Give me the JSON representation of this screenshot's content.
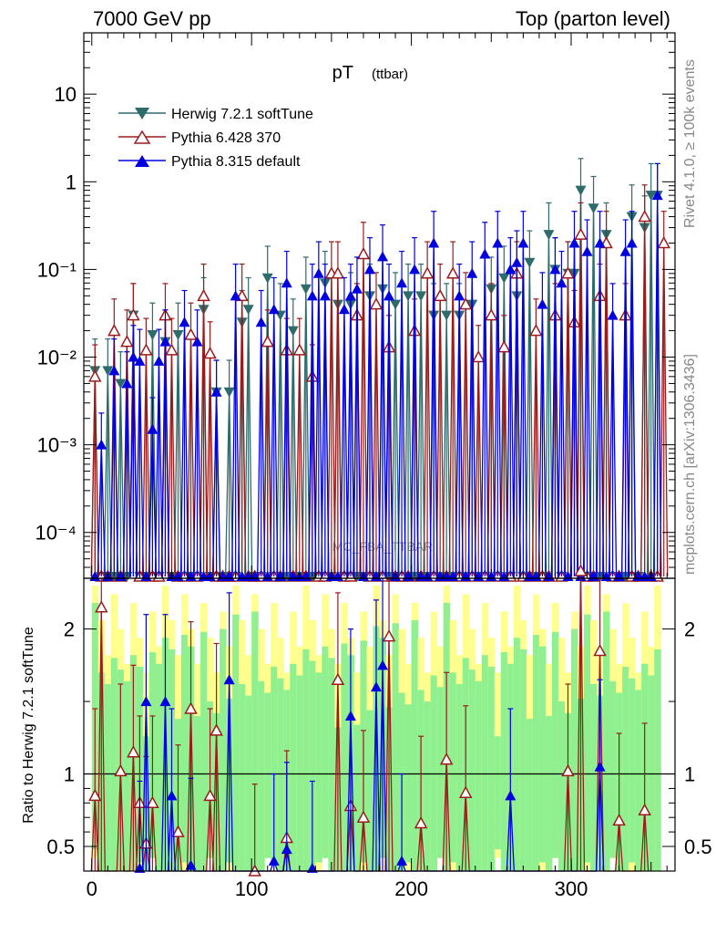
{
  "header": {
    "left": "7000 GeV pp",
    "right": "Top (parton level)"
  },
  "side_text": {
    "rivet": "Rivet 4.1.0, ≥ 100k events",
    "mcplots": "mcplots.cern.ch [arXiv:1306.3436]"
  },
  "watermark": "MC_FBA_TTBAR",
  "colors": {
    "herwig": "#2e6b6b",
    "pythia6": "#9b1b1b",
    "pythia8": "#0000e0",
    "band_green": "#90f090",
    "band_yellow": "#ffff90"
  },
  "chart_data": [
    {
      "type": "scatter",
      "title": "pT",
      "title_sub": "(ttbar)",
      "xlabel": "",
      "ylabel": "",
      "yscale": "log",
      "xlim": [
        -5,
        365
      ],
      "ylim": [
        3e-05,
        50
      ],
      "y_tick_labels": [
        "10",
        "1",
        "10⁻¹",
        "10⁻²",
        "10⁻³",
        "10⁻⁴"
      ],
      "y_tick_values": [
        10,
        1,
        0.1,
        0.01,
        0.001,
        0.0001
      ],
      "legend_position": "top-left",
      "series": [
        {
          "name": "Herwig 7.2.1 softTune",
          "marker": "triangle-down-filled",
          "x": [
            2,
            10,
            18,
            26,
            38,
            46,
            54,
            70,
            78,
            86,
            94,
            98,
            110,
            118,
            126,
            134,
            146,
            154,
            162,
            174,
            182,
            190,
            198,
            206,
            214,
            222,
            230,
            238,
            250,
            258,
            266,
            274,
            286,
            290,
            298,
            302,
            306,
            314,
            322,
            338,
            346,
            350,
            354
          ],
          "values": [
            0.007,
            0.007,
            0.005,
            0.03,
            0.018,
            0.015,
            0.018,
            0.035,
            0.004,
            0.004,
            0.025,
            0.035,
            0.08,
            0.03,
            0.02,
            0.06,
            0.07,
            0.04,
            0.04,
            0.05,
            0.06,
            0.04,
            0.05,
            0.05,
            0.03,
            0.03,
            0.03,
            0.04,
            0.06,
            0.08,
            0.05,
            0.12,
            0.25,
            0.1,
            0.09,
            0.09,
            0.8,
            0.5,
            0.25,
            0.4,
            0.3,
            0.7,
            0.7
          ]
        },
        {
          "name": "Pythia 6.428 370",
          "marker": "triangle-up-open",
          "x": [
            2,
            14,
            22,
            26,
            34,
            46,
            50,
            62,
            70,
            74,
            94,
            110,
            122,
            130,
            138,
            150,
            154,
            166,
            170,
            178,
            186,
            202,
            210,
            218,
            226,
            234,
            242,
            250,
            258,
            266,
            278,
            290,
            298,
            302,
            306,
            318,
            322,
            334,
            346,
            358
          ],
          "values": [
            0.006,
            0.02,
            0.015,
            0.03,
            0.012,
            0.03,
            0.012,
            0.018,
            0.05,
            0.011,
            0.05,
            0.015,
            0.012,
            0.012,
            0.006,
            0.09,
            0.09,
            0.03,
            0.15,
            0.04,
            0.013,
            0.02,
            0.09,
            0.05,
            0.09,
            0.04,
            0.01,
            0.03,
            0.013,
            0.09,
            0.02,
            0.03,
            0.09,
            0.025,
            0.25,
            0.05,
            0.2,
            0.03,
            0.4,
            0.2
          ]
        },
        {
          "name": "Pythia 8.315 default",
          "marker": "triangle-up-filled",
          "x": [
            6,
            14,
            22,
            26,
            30,
            38,
            42,
            46,
            58,
            66,
            78,
            90,
            106,
            114,
            122,
            138,
            142,
            146,
            158,
            162,
            166,
            174,
            182,
            186,
            194,
            202,
            214,
            230,
            238,
            246,
            254,
            262,
            266,
            270,
            282,
            290,
            294,
            302,
            310,
            318,
            326,
            334,
            338,
            354
          ],
          "values": [
            0.001,
            0.007,
            0.005,
            0.01,
            0.009,
            0.0015,
            0.009,
            0.015,
            0.025,
            0.015,
            0.004,
            0.05,
            0.025,
            0.035,
            0.07,
            0.05,
            0.09,
            0.05,
            0.035,
            0.05,
            0.06,
            0.1,
            0.14,
            0.05,
            0.07,
            0.1,
            0.2,
            0.05,
            0.09,
            0.15,
            0.2,
            0.1,
            0.12,
            0.2,
            0.04,
            0.1,
            0.07,
            0.2,
            0.16,
            0.2,
            0.03,
            0.16,
            0.2,
            0.7
          ]
        }
      ]
    },
    {
      "type": "scatter",
      "title": "",
      "xlabel": "",
      "ylabel": "Ratio to Herwig 7.2.1 softTune",
      "xlim": [
        -5,
        365
      ],
      "ylim": [
        0.33,
        2.35
      ],
      "x_tick_labels": [
        "0",
        "100",
        "200",
        "300"
      ],
      "x_tick_values": [
        0,
        100,
        200,
        300
      ],
      "y_tick_labels": [
        "2",
        "1",
        "0.5"
      ],
      "y_tick_values": [
        2,
        1,
        0.5
      ],
      "reference_line": 1,
      "series": [
        {
          "name": "Pythia 6.428 370",
          "marker": "triangle-up-open",
          "x": [
            2,
            6,
            18,
            26,
            30,
            34,
            38,
            54,
            62,
            74,
            78,
            102,
            122,
            154,
            162,
            170,
            186,
            206,
            222,
            234,
            298,
            306,
            318,
            330,
            346
          ],
          "values": [
            0.85,
            2.15,
            1.02,
            1.15,
            0.8,
            0.52,
            0.8,
            0.6,
            1.45,
            0.85,
            1.3,
            0.33,
            0.56,
            1.65,
            0.78,
            0.7,
            1.95,
            0.66,
            1.1,
            0.87,
            1.02,
            2.4,
            1.85,
            0.68,
            0.75
          ]
        },
        {
          "name": "Pythia 8.315 default",
          "marker": "triangle-up-filled",
          "x": [
            30,
            34,
            46,
            50,
            62,
            86,
            114,
            122,
            138,
            162,
            178,
            182,
            194,
            262,
            318
          ],
          "values": [
            0.35,
            1.5,
            1.5,
            0.85,
            0.37,
            1.65,
            0.4,
            0.48,
            0.35,
            1.4,
            1.6,
            1.75,
            0.4,
            0.85,
            1.05
          ]
        }
      ]
    }
  ]
}
